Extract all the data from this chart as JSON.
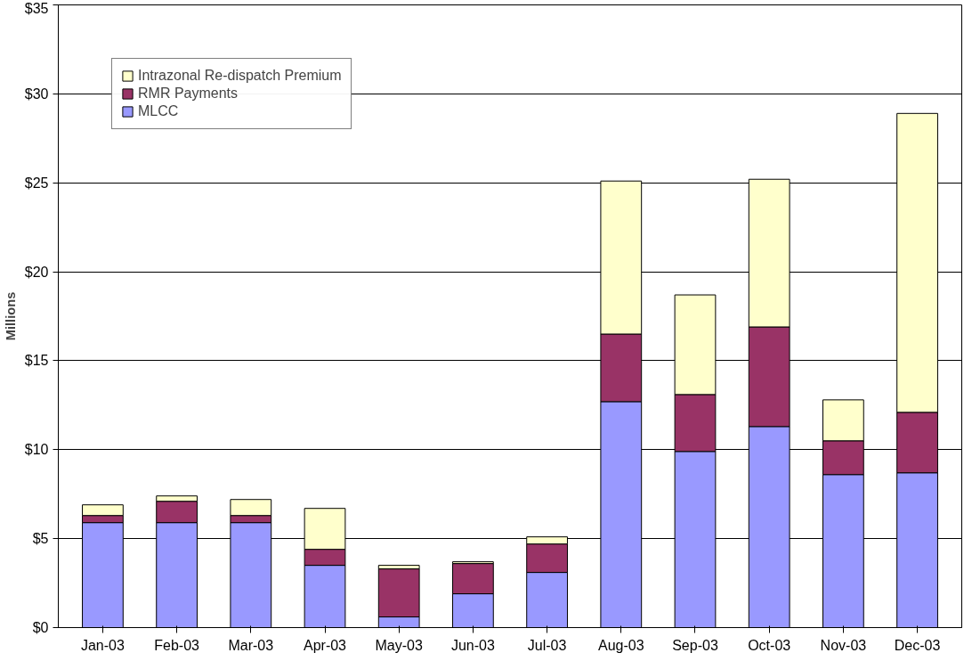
{
  "chart_data": {
    "type": "bar",
    "stacked": true,
    "ylabel": "Millions",
    "categories": [
      "Jan-03",
      "Feb-03",
      "Mar-03",
      "Apr-03",
      "May-03",
      "Jun-03",
      "Jul-03",
      "Aug-03",
      "Sep-03",
      "Oct-03",
      "Nov-03",
      "Dec-03"
    ],
    "series": [
      {
        "name": "MLCC",
        "color": "#9999ff",
        "values": [
          5.9,
          5.9,
          5.9,
          3.5,
          0.6,
          1.9,
          3.1,
          12.7,
          9.9,
          11.3,
          8.6,
          8.7
        ]
      },
      {
        "name": "RMR Payments",
        "color": "#993366",
        "values": [
          0.4,
          1.2,
          0.4,
          0.9,
          2.7,
          1.7,
          1.6,
          3.8,
          3.2,
          5.6,
          1.9,
          3.4
        ]
      },
      {
        "name": "Intrazonal Re-dispatch Premium",
        "color": "#ffffcc",
        "values": [
          0.6,
          0.3,
          0.9,
          2.3,
          0.2,
          0.1,
          0.4,
          8.6,
          5.6,
          8.3,
          2.3,
          16.8
        ]
      }
    ],
    "ylim": [
      0,
      35
    ],
    "yticks": [
      {
        "value": 0,
        "label": "$0"
      },
      {
        "value": 5,
        "label": "$5"
      },
      {
        "value": 10,
        "label": "$10"
      },
      {
        "value": 15,
        "label": "$15"
      },
      {
        "value": 20,
        "label": "$20"
      },
      {
        "value": 25,
        "label": "$25"
      },
      {
        "value": 30,
        "label": "$30"
      },
      {
        "value": 35,
        "label": "$35"
      }
    ],
    "grid": "y",
    "legend": "top left"
  }
}
